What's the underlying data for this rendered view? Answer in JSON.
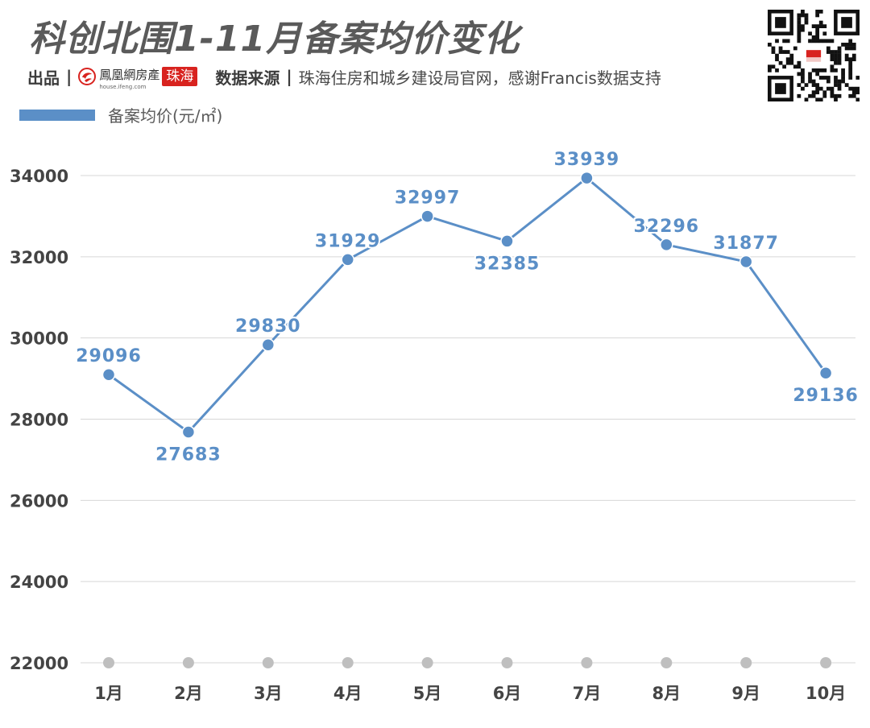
{
  "title": "科创北围1-11月备案均价变化",
  "credit": {
    "produced_label": "出品",
    "separator": "|",
    "brand_name": "鳳凰網房產",
    "brand_url": "house.ifeng.com",
    "brand_city": "珠海",
    "source_label": "数据来源",
    "source_text": "珠海住房和城乡建设局官网，感谢Francis数据支持"
  },
  "colors": {
    "line": "#5b8fc7",
    "label": "#5b8fc7",
    "grid": "#d7d7d7",
    "axis_dot": "#bfbfbf",
    "title": "#5a5a5a",
    "brand_red": "#d8231f"
  },
  "chart_data": {
    "type": "line",
    "categories": [
      "1月",
      "2月",
      "3月",
      "4月",
      "5月",
      "6月",
      "7月",
      "8月",
      "9月",
      "10月"
    ],
    "series": [
      {
        "name": "备案均价(元/㎡)",
        "values": [
          29096,
          27683,
          29830,
          31929,
          32997,
          32385,
          33939,
          32296,
          31877,
          29136
        ]
      }
    ],
    "ylim": [
      22000,
      34000
    ],
    "yticks": [
      22000,
      24000,
      26000,
      28000,
      30000,
      32000,
      34000
    ],
    "grid": true,
    "legend": "top-left",
    "xlabel": "",
    "ylabel": "",
    "label_positions": [
      "above",
      "below",
      "above",
      "above",
      "above",
      "below",
      "above",
      "above",
      "above",
      "below"
    ]
  }
}
